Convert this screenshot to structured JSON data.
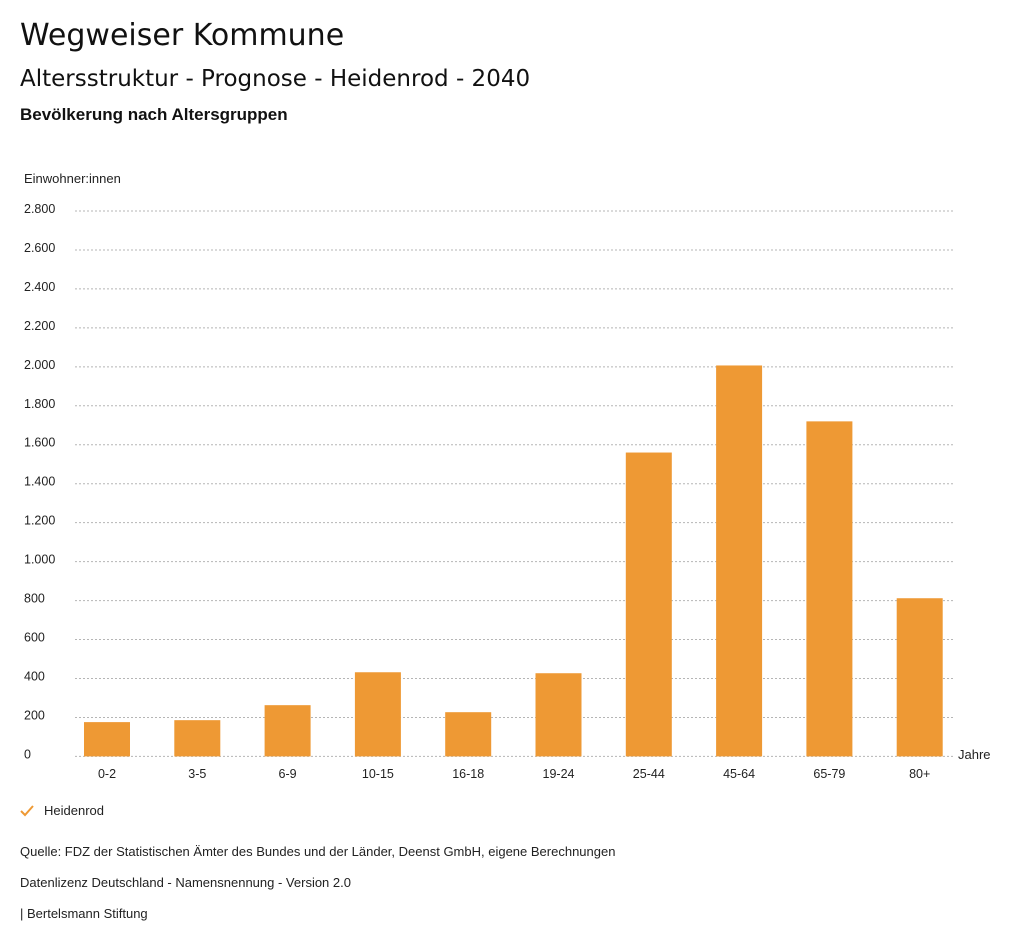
{
  "header": {
    "title": "Wegweiser Kommune",
    "subtitle": "Altersstruktur - Prognose - Heidenrod - 2040",
    "section": "Bevölkerung nach Altersgruppen"
  },
  "chart_data": {
    "type": "bar",
    "title": "Bevölkerung nach Altersgruppen",
    "xlabel": "Jahre",
    "ylabel": "Einwohner:innen",
    "ylim": [
      0,
      2800
    ],
    "yticks": [
      0,
      200,
      400,
      600,
      800,
      1000,
      1200,
      1400,
      1600,
      1800,
      2000,
      2200,
      2400,
      2600,
      2800
    ],
    "ytick_labels": [
      "0",
      "200",
      "400",
      "600",
      "800",
      "1.000",
      "1.200",
      "1.400",
      "1.600",
      "1.800",
      "2.000",
      "2.200",
      "2.400",
      "2.600",
      "2.800"
    ],
    "grid": true,
    "categories": [
      "0-2",
      "3-5",
      "6-9",
      "10-15",
      "16-18",
      "19-24",
      "25-44",
      "45-64",
      "65-79",
      "80+"
    ],
    "series": [
      {
        "name": "Heidenrod",
        "color": "#ee9934",
        "values": [
          176,
          186,
          263,
          432,
          227,
          427,
          1560,
          2007,
          1720,
          812
        ]
      }
    ],
    "legend": "bottom-left"
  },
  "footer": {
    "source": "Quelle: FDZ der Statistischen Ämter des Bundes und der Länder, Deenst GmbH, eigene Berechnungen",
    "license": "Datenlizenz Deutschland - Namensnennung - Version 2.0",
    "brand": "| Bertelsmann Stiftung"
  }
}
